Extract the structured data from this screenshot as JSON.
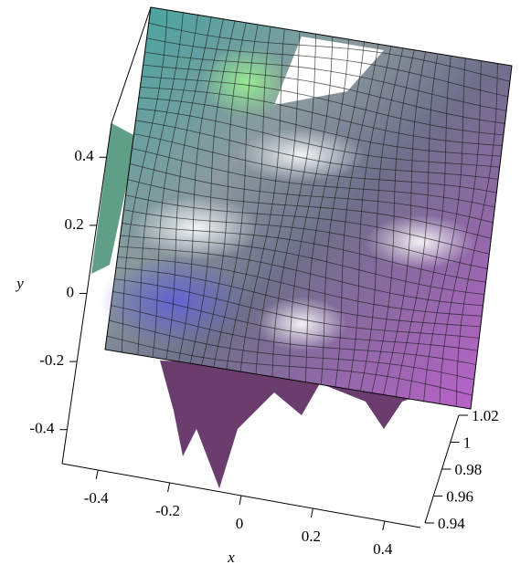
{
  "chart_data": {
    "type": "surface3d",
    "x_label": "x",
    "y_label": "y",
    "xlim": [
      -0.5,
      0.5
    ],
    "xticks": [
      -0.4,
      -0.2,
      0,
      0.2,
      0.4
    ],
    "ylim": [
      -0.5,
      0.5
    ],
    "yticks": [
      -0.4,
      0.2,
      0,
      -0.2,
      0.4
    ],
    "zlim": [
      0.94,
      1.02
    ],
    "zticks": [
      1.02,
      1,
      0.98,
      0.96,
      0.94
    ]
  }
}
